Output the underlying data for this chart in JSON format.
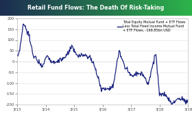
{
  "title": "Retail Fund Flows: The Death Of Risk-Taking",
  "title_bg_left": "#1c2d52",
  "title_bg_right": "#2db34a",
  "title_color": "#ffffff",
  "legend_label": "Total Equity Mutual Fund + ETF Flows\nLess Total Fixed Income Mutual Fund\n+ ETF Flows, -168.85bn USD",
  "line_color": "#1a237e",
  "line_width": 0.9,
  "bg_color": "#ffffff",
  "plot_bg_color": "#ffffff",
  "ylim": [
    -200,
    200
  ],
  "yticks": [
    -200,
    -150,
    -100,
    -50,
    0,
    50,
    100,
    150,
    200
  ],
  "xtick_labels": [
    "3/13",
    "3/14",
    "3/15",
    "3/16",
    "3/17",
    "3/18",
    "3/19"
  ],
  "grid_color": "#dddddd"
}
